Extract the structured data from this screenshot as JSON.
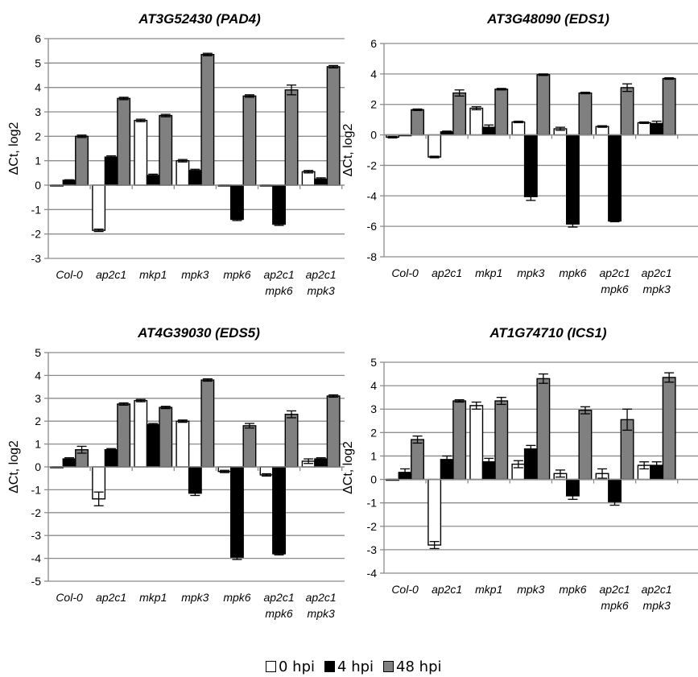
{
  "legend": [
    {
      "label": "0 hpi",
      "color": "#ffffff"
    },
    {
      "label": "4 hpi",
      "color": "#000000"
    },
    {
      "label": "48 hpi",
      "color": "#808080"
    }
  ],
  "chart_data": [
    {
      "type": "bar",
      "title": "AT3G52430 (PAD4)",
      "ylabel": "ΔCt, log2",
      "ylim": [
        -3,
        6
      ],
      "yticks": [
        -3,
        -2,
        -1,
        0,
        1,
        2,
        3,
        4,
        5,
        6
      ],
      "categories": [
        [
          "Col-0"
        ],
        [
          "ap2c1"
        ],
        [
          "mkp1"
        ],
        [
          "mpk3"
        ],
        [
          "mpk6"
        ],
        [
          "ap2c1",
          "mpk6"
        ],
        [
          "ap2c1",
          "mpk3"
        ]
      ],
      "series": [
        {
          "name": "0 hpi",
          "values": [
            0.0,
            -1.85,
            2.65,
            1.0,
            0.0,
            0.0,
            0.55
          ],
          "errors": [
            0.0,
            0.05,
            0.05,
            0.05,
            0.0,
            0.0,
            0.05
          ]
        },
        {
          "name": "4 hpi",
          "values": [
            0.2,
            1.15,
            0.4,
            0.6,
            -1.4,
            -1.6,
            0.25
          ],
          "errors": [
            0.02,
            0.05,
            0.05,
            0.05,
            0.05,
            0.05,
            0.05
          ]
        },
        {
          "name": "48 hpi",
          "values": [
            2.0,
            3.55,
            2.85,
            5.35,
            3.65,
            3.9,
            4.85
          ],
          "errors": [
            0.05,
            0.05,
            0.05,
            0.05,
            0.05,
            0.2,
            0.05
          ]
        }
      ],
      "grid": true
    },
    {
      "type": "bar",
      "title": "AT3G48090 (EDS1)",
      "ylabel": "ΔCt, log2",
      "ylim": [
        -8,
        6
      ],
      "yticks": [
        -8,
        -6,
        -4,
        -2,
        0,
        2,
        4,
        6
      ],
      "categories": [
        [
          "Col-0"
        ],
        [
          "ap2c1"
        ],
        [
          "mkp1"
        ],
        [
          "mpk3"
        ],
        [
          "mpk6"
        ],
        [
          "ap2c1",
          "mpk6"
        ],
        [
          "ap2c1",
          "mpk3"
        ]
      ],
      "series": [
        {
          "name": "0 hpi",
          "values": [
            -0.15,
            -1.45,
            1.75,
            0.85,
            0.4,
            0.55,
            0.8
          ],
          "errors": [
            0.05,
            0.05,
            0.1,
            0.05,
            0.1,
            0.05,
            0.05
          ]
        },
        {
          "name": "4 hpi",
          "values": [
            0.0,
            0.2,
            0.5,
            -4.05,
            -5.85,
            -5.65,
            0.75
          ],
          "errors": [
            0.0,
            0.05,
            0.15,
            0.25,
            0.2,
            0.05,
            0.15
          ]
        },
        {
          "name": "48 hpi",
          "values": [
            1.65,
            2.75,
            3.0,
            3.95,
            2.75,
            3.1,
            3.7
          ],
          "errors": [
            0.05,
            0.2,
            0.05,
            0.05,
            0.05,
            0.25,
            0.05
          ]
        }
      ],
      "grid": true
    },
    {
      "type": "bar",
      "title": "AT4G39030  (EDS5)",
      "ylabel": "ΔCt, log2",
      "ylim": [
        -5,
        5
      ],
      "yticks": [
        -5,
        -4,
        -3,
        -2,
        -1,
        0,
        1,
        2,
        3,
        4,
        5
      ],
      "categories": [
        [
          "Col-0"
        ],
        [
          "ap2c1"
        ],
        [
          "mkp1"
        ],
        [
          "mpk3"
        ],
        [
          "mpk6"
        ],
        [
          "ap2c1",
          "mpk6"
        ],
        [
          "ap2c1",
          "mpk3"
        ]
      ],
      "series": [
        {
          "name": "0 hpi",
          "values": [
            0.0,
            -1.4,
            2.9,
            2.0,
            -0.2,
            -0.35,
            0.25
          ],
          "errors": [
            0.0,
            0.3,
            0.05,
            0.05,
            0.05,
            0.05,
            0.1
          ]
        },
        {
          "name": "4 hpi",
          "values": [
            0.35,
            0.75,
            1.85,
            -1.15,
            -3.95,
            -3.8,
            0.35
          ],
          "errors": [
            0.05,
            0.05,
            0.05,
            0.1,
            0.1,
            0.05,
            0.05
          ]
        },
        {
          "name": "48 hpi",
          "values": [
            0.75,
            2.75,
            2.6,
            3.8,
            1.8,
            2.3,
            3.1
          ],
          "errors": [
            0.15,
            0.05,
            0.05,
            0.05,
            0.1,
            0.15,
            0.05
          ]
        }
      ],
      "grid": true
    },
    {
      "type": "bar",
      "title": "AT1G74710  (ICS1)",
      "ylabel": "ΔCt, log2",
      "ylim": [
        -4,
        5
      ],
      "yticks": [
        -4,
        -3,
        -2,
        -1,
        0,
        1,
        2,
        3,
        4,
        5
      ],
      "categories": [
        [
          "Col-0"
        ],
        [
          "ap2c1"
        ],
        [
          "mkp1"
        ],
        [
          "mpk3"
        ],
        [
          "mpk6"
        ],
        [
          "ap2c1",
          "mpk6"
        ],
        [
          "ap2c1",
          "mpk3"
        ]
      ],
      "series": [
        {
          "name": "0 hpi",
          "values": [
            0.0,
            -2.8,
            3.15,
            0.65,
            0.25,
            0.25,
            0.6
          ],
          "errors": [
            0.0,
            0.15,
            0.15,
            0.15,
            0.15,
            0.2,
            0.15
          ]
        },
        {
          "name": "4 hpi",
          "values": [
            0.3,
            0.85,
            0.75,
            1.3,
            -0.7,
            -0.95,
            0.6
          ],
          "errors": [
            0.15,
            0.15,
            0.15,
            0.15,
            0.15,
            0.15,
            0.15
          ]
        },
        {
          "name": "48 hpi",
          "values": [
            1.7,
            3.35,
            3.35,
            4.3,
            2.95,
            2.55,
            4.35
          ],
          "errors": [
            0.15,
            0.05,
            0.15,
            0.2,
            0.15,
            0.45,
            0.2
          ]
        }
      ],
      "grid": true
    }
  ]
}
